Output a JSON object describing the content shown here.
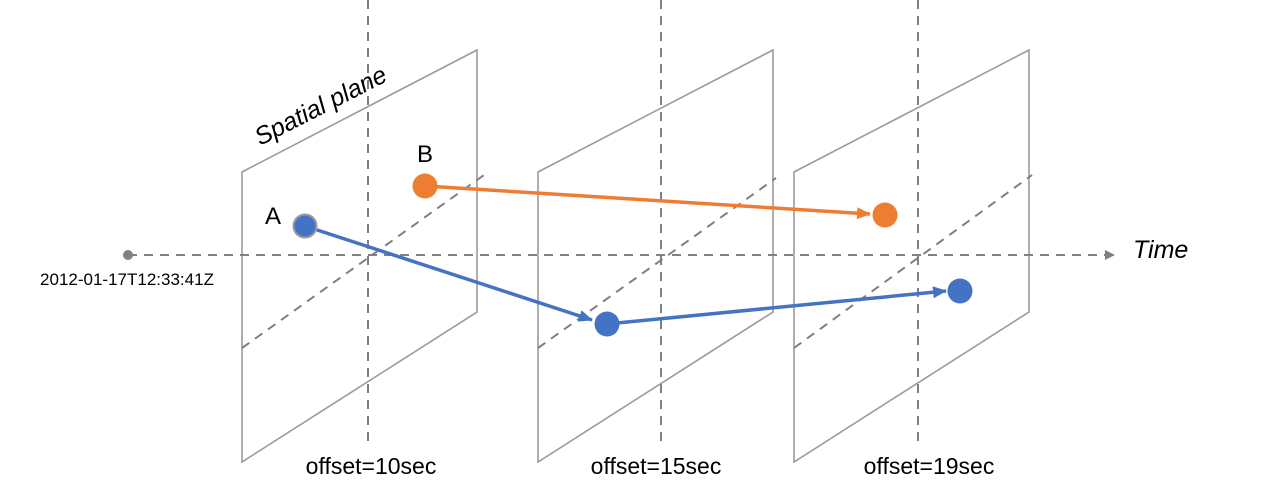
{
  "plane_label": "Spatial plane",
  "time_label": "Time",
  "origin_timestamp": "2012-01-17T12:33:41Z",
  "offset_labels": [
    "offset=10sec",
    "offset=15sec",
    "offset=19sec"
  ],
  "object_labels": {
    "a": "A",
    "b": "B"
  },
  "colors": {
    "object_a": "#4472c4",
    "object_b": "#ed7d31",
    "axis": "#808080",
    "plane": "#9b9b9b"
  }
}
